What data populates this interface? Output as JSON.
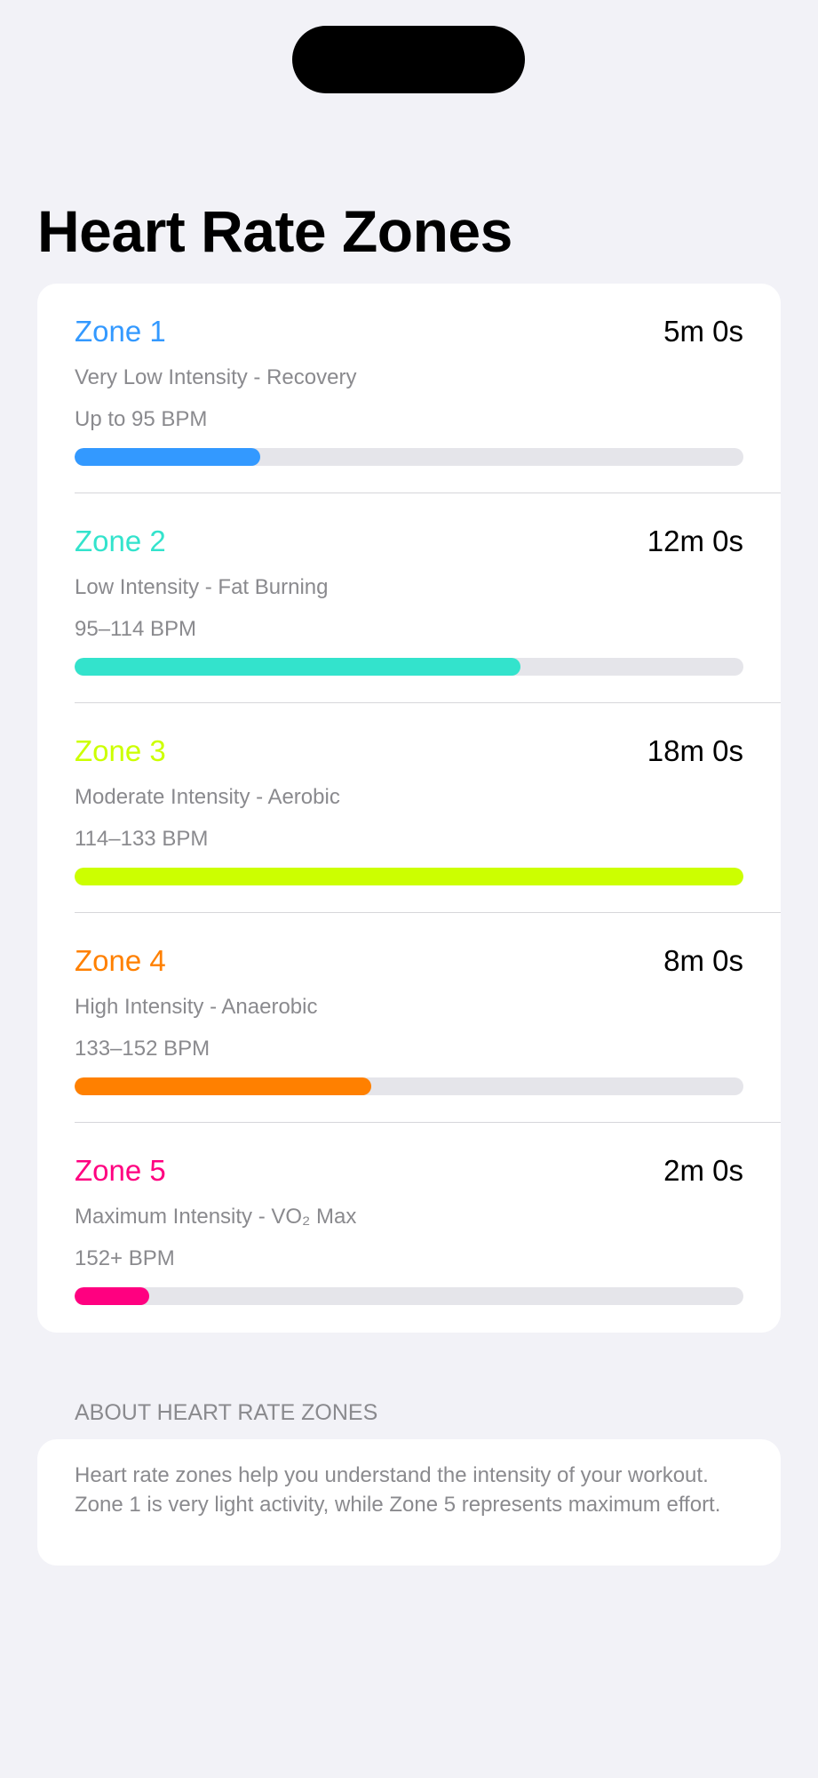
{
  "page": {
    "title": "Heart Rate Zones"
  },
  "zones": [
    {
      "name": "Zone 1",
      "time": "5m 0s",
      "description": "Very Low Intensity - Recovery",
      "bpm": "Up to 95 BPM",
      "color": "#3399ff",
      "progress": 0.278
    },
    {
      "name": "Zone 2",
      "time": "12m 0s",
      "description": "Low Intensity - Fat Burning",
      "bpm": "95–114 BPM",
      "color": "#33e3cc",
      "progress": 0.667
    },
    {
      "name": "Zone 3",
      "time": "18m 0s",
      "description": "Moderate Intensity - Aerobic",
      "bpm": "114–133 BPM",
      "color": "#ccff00",
      "progress": 1.0
    },
    {
      "name": "Zone 4",
      "time": "8m 0s",
      "description": "High Intensity - Anaerobic",
      "bpm": "133–152 BPM",
      "color": "#ff8000",
      "progress": 0.444
    },
    {
      "name": "Zone 5",
      "time": "2m 0s",
      "description": "Maximum Intensity - VO₂ Max",
      "bpm": "152+ BPM",
      "color": "#ff0080",
      "progress": 0.111
    }
  ],
  "about": {
    "header": "ABOUT HEART RATE ZONES",
    "text": "Heart rate zones help you understand the intensity of your workout. Zone 1 is very light activity, while Zone 5 represents maximum effort."
  }
}
